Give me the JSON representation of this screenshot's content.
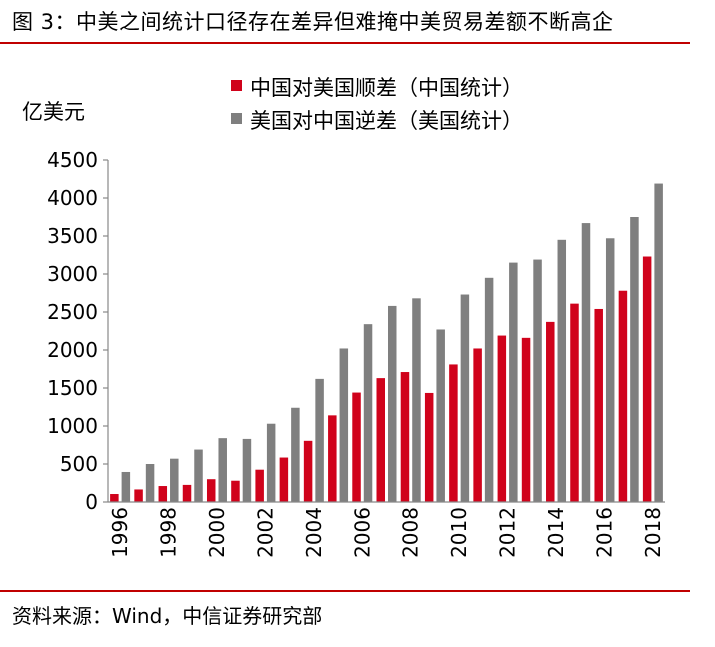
{
  "header": {
    "title": "图 3：中美之间统计口径存在差异但难掩中美贸易差额不断高企"
  },
  "footer": {
    "source": "资料来源：Wind，中信证券研究部"
  },
  "chart_data": {
    "type": "bar",
    "ylabel": "亿美元",
    "ylim": [
      0,
      4500
    ],
    "yticks": [
      0,
      500,
      1000,
      1500,
      2000,
      2500,
      3000,
      3500,
      4000,
      4500
    ],
    "categories": [
      "1996",
      "1997",
      "1998",
      "1999",
      "2000",
      "2001",
      "2002",
      "2003",
      "2004",
      "2005",
      "2006",
      "2007",
      "2008",
      "2009",
      "2010",
      "2011",
      "2012",
      "2013",
      "2014",
      "2015",
      "2016",
      "2017",
      "2018"
    ],
    "xtick_labels": [
      "1996",
      "1998",
      "2000",
      "2002",
      "2004",
      "2006",
      "2008",
      "2010",
      "2012",
      "2014",
      "2016",
      "2018"
    ],
    "legend_position": "top-center",
    "grid": false,
    "series": [
      {
        "name": "中国对美国顺差（中国统计）",
        "color": "#d0021b",
        "values": [
          105,
          165,
          210,
          225,
          300,
          280,
          425,
          585,
          805,
          1140,
          1440,
          1630,
          1710,
          1435,
          1810,
          2020,
          2190,
          2160,
          2370,
          2610,
          2540,
          2780,
          3230
        ]
      },
      {
        "name": "美国对中国逆差（美国统计）",
        "color": "#7f7f7f",
        "values": [
          395,
          500,
          570,
          690,
          840,
          830,
          1030,
          1240,
          1620,
          2020,
          2340,
          2580,
          2680,
          2270,
          2730,
          2950,
          3150,
          3190,
          3450,
          3670,
          3470,
          3750,
          4190
        ]
      }
    ]
  }
}
